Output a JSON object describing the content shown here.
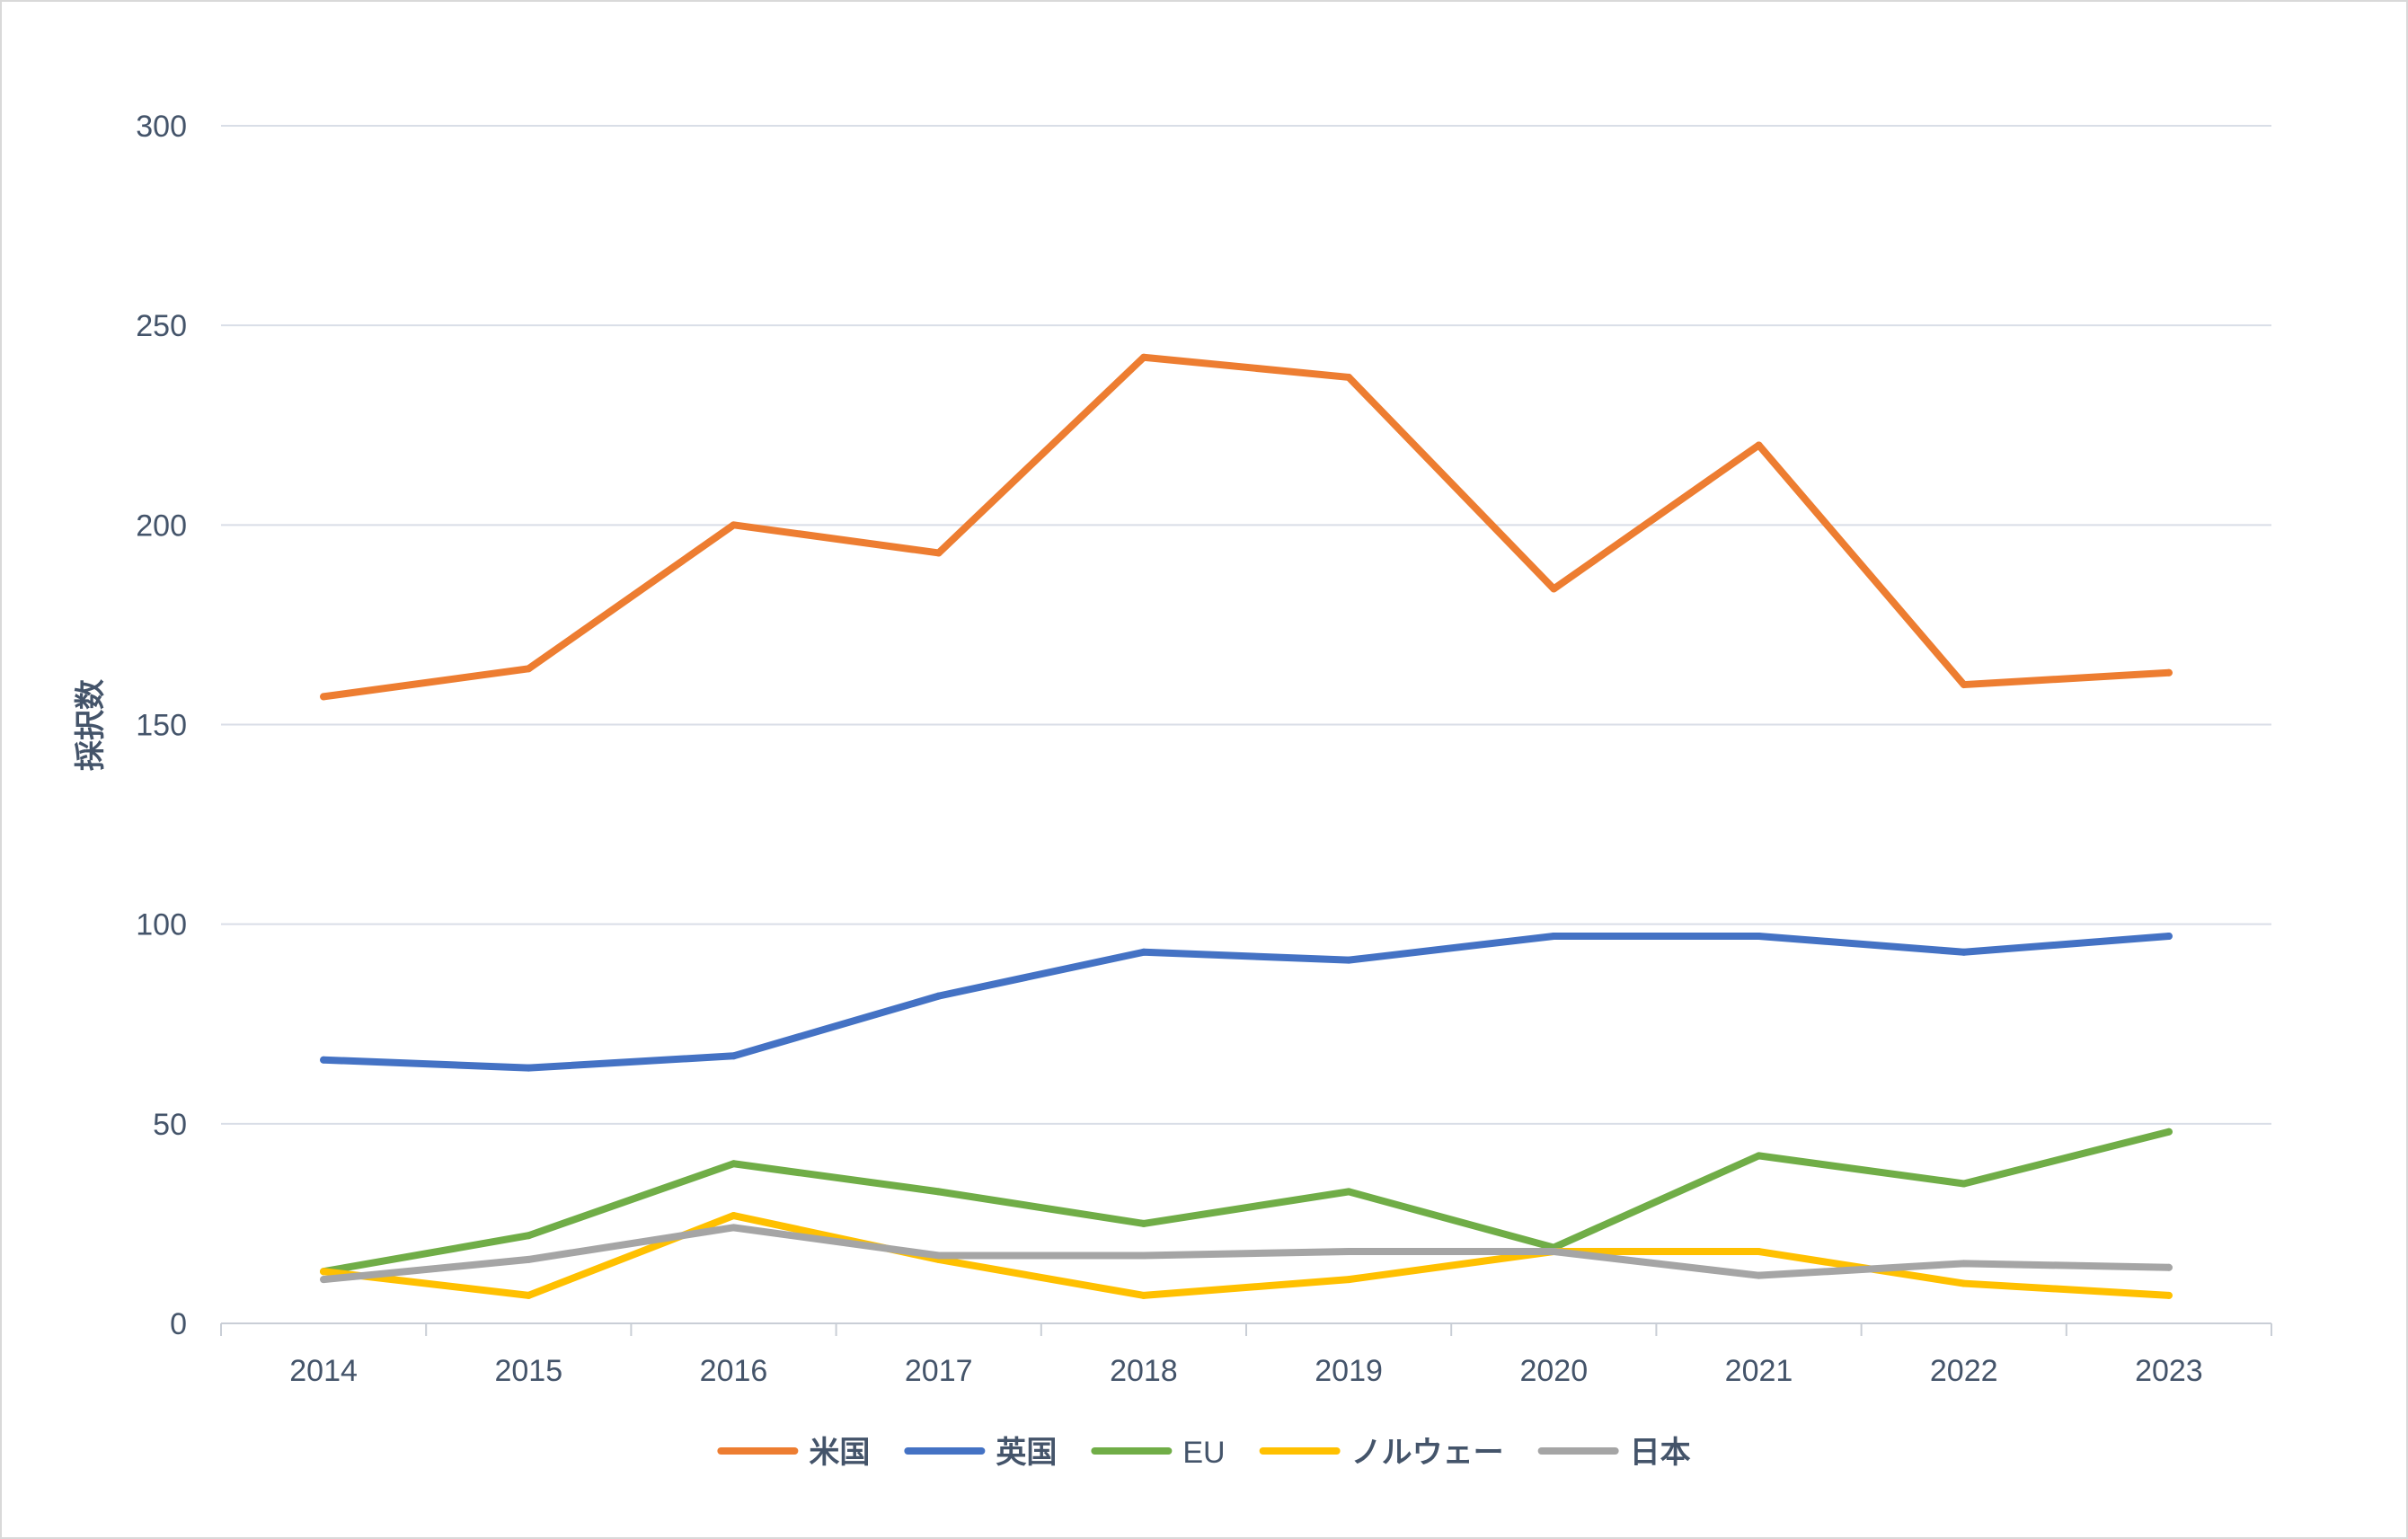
{
  "chart_data": {
    "type": "line",
    "title": "",
    "xlabel": "",
    "ylabel": "採択数",
    "x": [
      "2014",
      "2015",
      "2016",
      "2017",
      "2018",
      "2019",
      "2020",
      "2021",
      "2022",
      "2023"
    ],
    "ylim": [
      0,
      300
    ],
    "yticks": [
      0,
      50,
      100,
      150,
      200,
      250,
      300
    ],
    "grid": true,
    "legend_position": "bottom",
    "series": [
      {
        "name": "米国",
        "color": "#ed7d31",
        "values": [
          157,
          164,
          200,
          193,
          242,
          237,
          184,
          220,
          160,
          163
        ]
      },
      {
        "name": "英国",
        "color": "#4472c4",
        "values": [
          66,
          64,
          67,
          82,
          93,
          91,
          97,
          97,
          93,
          97
        ]
      },
      {
        "name": "EU",
        "color": "#70ad47",
        "values": [
          13,
          22,
          40,
          33,
          25,
          33,
          19,
          42,
          35,
          48
        ]
      },
      {
        "name": "ノルウェー",
        "color": "#ffc000",
        "values": [
          13,
          7,
          27,
          16,
          7,
          11,
          18,
          18,
          10,
          7
        ]
      },
      {
        "name": "日本",
        "color": "#a5a5a5",
        "values": [
          11,
          16,
          24,
          17,
          17,
          18,
          18,
          12,
          15,
          14
        ]
      }
    ]
  }
}
